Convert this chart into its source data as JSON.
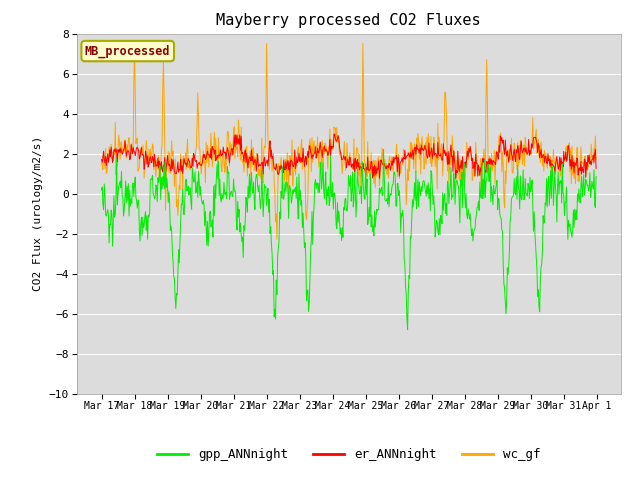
{
  "title": "Mayberry processed CO2 Fluxes",
  "ylabel": "CO2 Flux (urology/m2/s)",
  "ylim": [
    -10,
    8
  ],
  "yticks": [
    -10,
    -8,
    -6,
    -4,
    -2,
    0,
    2,
    4,
    6,
    8
  ],
  "legend_label": "MB_processed",
  "legend_label_color": "#8B0000",
  "legend_box_color": "#FFFFCC",
  "legend_box_edge": "#AAAA00",
  "bg_color": "#DCDCDC",
  "fig_color": "#FFFFFF",
  "line_colors": {
    "gpp": "#00EE00",
    "er": "#FF0000",
    "wc": "#FFA500"
  },
  "legend_entries": [
    "gpp_ANNnight",
    "er_ANNnight",
    "wc_gf"
  ],
  "start_day": 17,
  "end_day": 32,
  "points_per_day": 48,
  "seed": 12345,
  "figsize": [
    6.4,
    4.8
  ],
  "dpi": 100
}
